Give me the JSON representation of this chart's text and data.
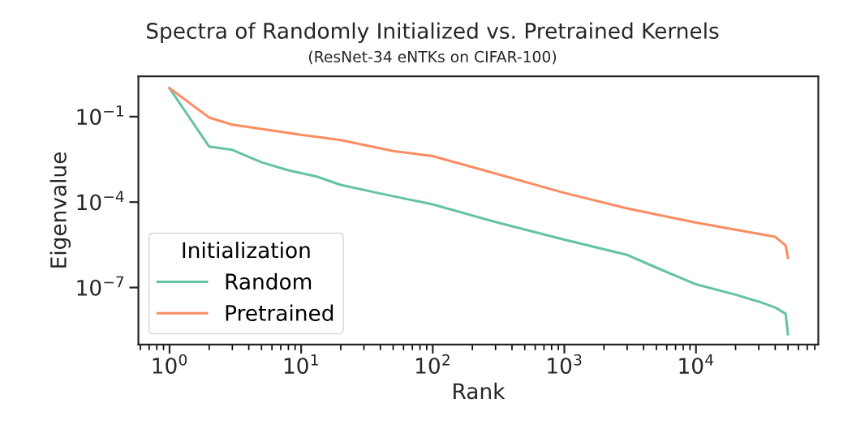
{
  "chart_data": {
    "type": "line",
    "title": "Spectra of Randomly Initialized vs. Pretrained Kernels",
    "subtitle": "(ResNet-34 eNTKs on CIFAR-100)",
    "xlabel": "Rank",
    "ylabel": "Eigenvalue",
    "legend_title": "Initialization",
    "log": "xy",
    "grid": false,
    "legend": "bottom left",
    "xlim": [
      0.58,
      85000
    ],
    "ylim": [
      1e-09,
      2.6
    ],
    "xticks": [
      {
        "value": 1,
        "label": "10$^{0}$"
      },
      {
        "value": 10,
        "label": "10$^{1}$"
      },
      {
        "value": 100,
        "label": "10$^{2}$"
      },
      {
        "value": 1000,
        "label": "10$^{3}$"
      },
      {
        "value": 10000,
        "label": "10$^{4}$"
      }
    ],
    "yticks": [
      {
        "value": 0.1,
        "label": "10$^{−1}$"
      },
      {
        "value": 0.0001,
        "label": "10$^{−4}$"
      },
      {
        "value": 1e-07,
        "label": "10$^{−7}$"
      }
    ],
    "series": [
      {
        "name": "Random",
        "color": "#66c2a5",
        "x": [
          1,
          2,
          3,
          5,
          8,
          13,
          20,
          40,
          100,
          300,
          1000,
          3000,
          5000,
          10000,
          20000,
          30000,
          40000,
          48000,
          50000
        ],
        "values": [
          1.0,
          0.0089,
          0.0068,
          0.0025,
          0.0013,
          0.0008,
          0.0004,
          0.0002,
          8.3e-05,
          2e-05,
          4.8e-06,
          1.4e-06,
          5e-07,
          1.3e-07,
          5.6e-08,
          3.2e-08,
          2e-08,
          1.2e-08,
          2.3e-09
        ]
      },
      {
        "name": "Pretrained",
        "color": "#fc8d62",
        "x": [
          1,
          2,
          3,
          5,
          10,
          20,
          50,
          100,
          300,
          1000,
          3000,
          10000,
          20000,
          40000,
          48000,
          50000
        ],
        "values": [
          1.0,
          0.093,
          0.052,
          0.037,
          0.023,
          0.015,
          0.0062,
          0.0041,
          0.001,
          0.00021,
          6e-05,
          1.9e-05,
          1.07e-05,
          6e-06,
          3e-06,
          1.1e-06
        ]
      }
    ]
  }
}
